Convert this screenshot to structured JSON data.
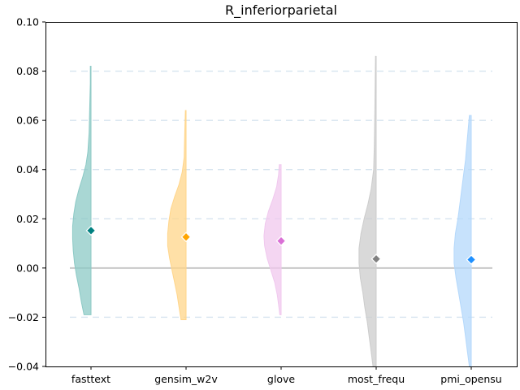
{
  "chart_data": {
    "type": "violin",
    "title": "R_inferiorparietal",
    "xlabel": "",
    "ylabel": "",
    "ylim": [
      -0.04,
      0.1
    ],
    "yticks": [
      -0.04,
      -0.02,
      0.0,
      0.02,
      0.04,
      0.06,
      0.08,
      0.1
    ],
    "ytick_labels": [
      "−0.04",
      "−0.02",
      "0.00",
      "0.02",
      "0.04",
      "0.06",
      "0.08",
      "0.10"
    ],
    "grid_lines": [
      -0.02,
      0.02,
      0.04,
      0.06,
      0.08
    ],
    "reference_line": 0.0,
    "categories": [
      "fasttext",
      "gensim_w2v",
      "glove",
      "most_frequ",
      "pmi_opensu"
    ],
    "series": [
      {
        "category": "fasttext",
        "color": "#008080",
        "fill": "#8cc9c5",
        "mean": 0.0152,
        "min": -0.019,
        "max": 0.082,
        "density": [
          [
            -0.019,
            0.011
          ],
          [
            -0.014,
            0.015
          ],
          [
            -0.008,
            0.019
          ],
          [
            -0.003,
            0.023
          ],
          [
            0.002,
            0.026
          ],
          [
            0.007,
            0.028
          ],
          [
            0.012,
            0.029
          ],
          [
            0.017,
            0.029
          ],
          [
            0.022,
            0.027
          ],
          [
            0.027,
            0.024
          ],
          [
            0.032,
            0.019
          ],
          [
            0.037,
            0.013
          ],
          [
            0.042,
            0.008
          ],
          [
            0.047,
            0.005
          ],
          [
            0.055,
            0.003
          ],
          [
            0.065,
            0.002
          ],
          [
            0.075,
            0.001
          ],
          [
            0.082,
            0.001
          ]
        ]
      },
      {
        "category": "gensim_w2v",
        "color": "#ffa500",
        "fill": "#ffd58a",
        "mean": 0.0126,
        "min": -0.021,
        "max": 0.064,
        "density": [
          [
            -0.021,
            0.008
          ],
          [
            -0.016,
            0.011
          ],
          [
            -0.011,
            0.014
          ],
          [
            -0.006,
            0.018
          ],
          [
            -0.001,
            0.022
          ],
          [
            0.004,
            0.026
          ],
          [
            0.009,
            0.029
          ],
          [
            0.014,
            0.029
          ],
          [
            0.019,
            0.027
          ],
          [
            0.024,
            0.024
          ],
          [
            0.029,
            0.018
          ],
          [
            0.034,
            0.011
          ],
          [
            0.039,
            0.006
          ],
          [
            0.045,
            0.003
          ],
          [
            0.055,
            0.002
          ],
          [
            0.064,
            0.001
          ]
        ]
      },
      {
        "category": "glove",
        "color": "#da70d6",
        "fill": "#f0c8ee",
        "mean": 0.011,
        "min": -0.019,
        "max": 0.042,
        "density": [
          [
            -0.019,
            0.002
          ],
          [
            -0.015,
            0.004
          ],
          [
            -0.011,
            0.006
          ],
          [
            -0.006,
            0.01
          ],
          [
            -0.001,
            0.016
          ],
          [
            0.004,
            0.022
          ],
          [
            0.009,
            0.026
          ],
          [
            0.013,
            0.027
          ],
          [
            0.018,
            0.025
          ],
          [
            0.023,
            0.02
          ],
          [
            0.028,
            0.013
          ],
          [
            0.033,
            0.007
          ],
          [
            0.038,
            0.004
          ],
          [
            0.042,
            0.003
          ]
        ]
      },
      {
        "category": "most_frequ",
        "color": "#808080",
        "fill": "#cccccc",
        "mean": 0.0037,
        "min": -0.04,
        "max": 0.086,
        "density": [
          [
            -0.04,
            0.005
          ],
          [
            -0.034,
            0.008
          ],
          [
            -0.028,
            0.011
          ],
          [
            -0.022,
            0.014
          ],
          [
            -0.016,
            0.018
          ],
          [
            -0.01,
            0.021
          ],
          [
            -0.004,
            0.025
          ],
          [
            0.002,
            0.027
          ],
          [
            0.008,
            0.027
          ],
          [
            0.014,
            0.024
          ],
          [
            0.02,
            0.019
          ],
          [
            0.026,
            0.013
          ],
          [
            0.032,
            0.008
          ],
          [
            0.04,
            0.004
          ],
          [
            0.05,
            0.003
          ],
          [
            0.065,
            0.002
          ],
          [
            0.086,
            0.001
          ]
        ]
      },
      {
        "category": "pmi_opensu",
        "color": "#1e90ff",
        "fill": "#b4d8fb",
        "mean": 0.0034,
        "min": -0.04,
        "max": 0.062,
        "density": [
          [
            -0.04,
            0.003
          ],
          [
            -0.034,
            0.006
          ],
          [
            -0.028,
            0.009
          ],
          [
            -0.022,
            0.012
          ],
          [
            -0.016,
            0.016
          ],
          [
            -0.01,
            0.02
          ],
          [
            -0.004,
            0.024
          ],
          [
            0.002,
            0.027
          ],
          [
            0.008,
            0.027
          ],
          [
            0.014,
            0.025
          ],
          [
            0.02,
            0.021
          ],
          [
            0.026,
            0.018
          ],
          [
            0.032,
            0.015
          ],
          [
            0.038,
            0.012
          ],
          [
            0.044,
            0.009
          ],
          [
            0.05,
            0.007
          ],
          [
            0.056,
            0.005
          ],
          [
            0.062,
            0.003
          ]
        ]
      }
    ]
  }
}
